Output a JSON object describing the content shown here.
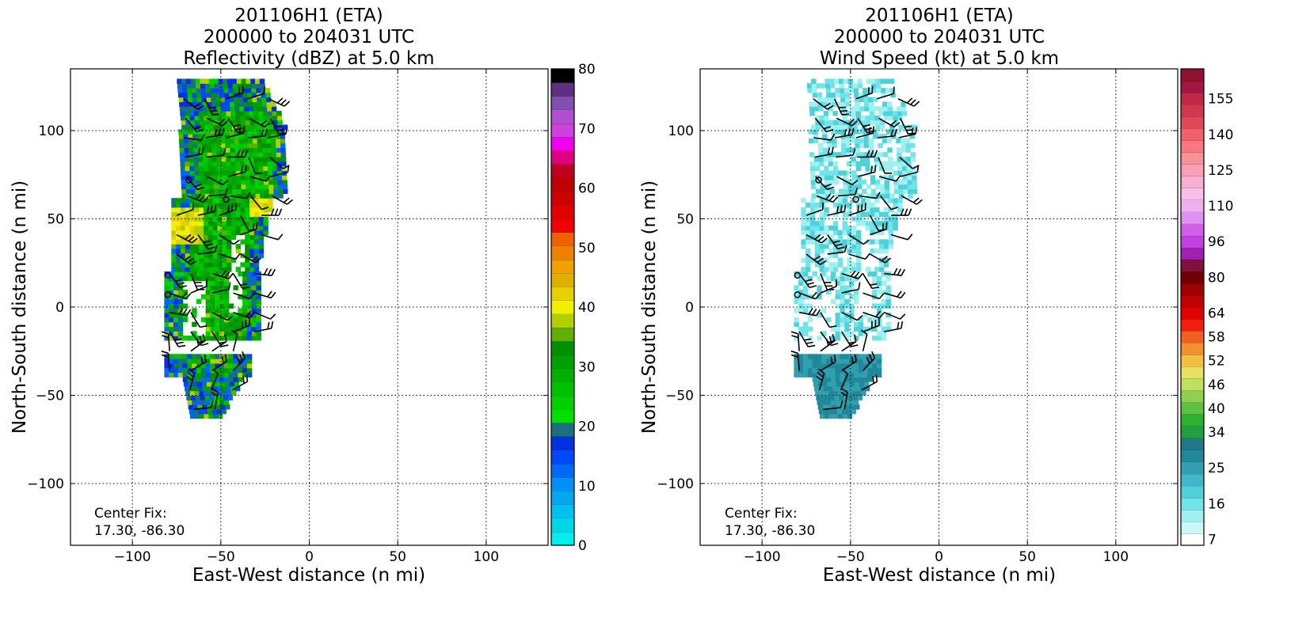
{
  "panels": [
    {
      "title_lines": [
        "201106H1 (ETA)",
        "200000 to 204031 UTC",
        "Reflectivity (dBZ) at 5.0 km"
      ],
      "xlabel": "East-West distance (n mi)",
      "ylabel": "North-South distance (n mi)",
      "center_fix": [
        "Center Fix:",
        "17.30, -86.30"
      ],
      "colorbar": {
        "colors": [
          "#00eeee",
          "#00d8e8",
          "#00c0f0",
          "#00a8f0",
          "#0090f8",
          "#0068f8",
          "#0048f8",
          "#0030e0",
          "#1a7080",
          "#00e000",
          "#00d000",
          "#00c000",
          "#00b000",
          "#00a000",
          "#009000",
          "#60b000",
          "#b0d000",
          "#f0f000",
          "#e8d000",
          "#e0b000",
          "#f0a000",
          "#f08000",
          "#f06000",
          "#f00000",
          "#e00000",
          "#d00000",
          "#c00000",
          "#c00020",
          "#e00080",
          "#f000f0",
          "#d040e0",
          "#b050d0",
          "#8050b0",
          "#603080",
          "#000000"
        ],
        "tick_values": [
          0,
          10,
          20,
          30,
          40,
          50,
          60,
          70,
          80
        ],
        "tick_labels": [
          "0",
          "10",
          "20",
          "30",
          "40",
          "50",
          "60",
          "70",
          "80"
        ],
        "vmin": 0,
        "vmax": 80
      }
    },
    {
      "title_lines": [
        "201106H1 (ETA)",
        "200000 to 204031 UTC",
        "Wind Speed (kt) at 5.0 km"
      ],
      "xlabel": "East-West distance (n mi)",
      "ylabel": "North-South distance (n mi)",
      "center_fix": [
        "Center Fix:",
        "17.30, -86.30"
      ],
      "colorbar": {
        "colors": [
          "#ffffff",
          "#c8f8f8",
          "#a0f0f0",
          "#70e4e8",
          "#50d0d8",
          "#40b8c8",
          "#30a0b0",
          "#208898",
          "#207888",
          "#20a040",
          "#30b030",
          "#60c040",
          "#90d050",
          "#c0e060",
          "#e8e060",
          "#f0c040",
          "#f09030",
          "#f06020",
          "#f02010",
          "#e00000",
          "#c00000",
          "#a00000",
          "#700000",
          "#801040",
          "#a020b0",
          "#c040e0",
          "#d060e8",
          "#e090f0",
          "#f0b0f0",
          "#f8c0e8",
          "#f8b0d0",
          "#f8a0b8",
          "#f89098",
          "#f87880",
          "#f06068",
          "#e04858",
          "#d03850",
          "#c02848",
          "#a01840",
          "#901030"
        ],
        "tick_labels": [
          "7",
          "16",
          "25",
          "34",
          "40",
          "46",
          "52",
          "58",
          "64",
          "80",
          "96",
          "110",
          "125",
          "140",
          "155"
        ],
        "tick_bins": [
          0,
          3,
          6,
          9,
          11,
          13,
          15,
          17,
          19,
          22,
          25,
          28,
          31,
          34,
          37
        ]
      }
    }
  ],
  "chart_data": [
    {
      "type": "heatmap",
      "title": "201106H1 (ETA) 200000 to 204031 UTC Reflectivity (dBZ) at 5.0 km",
      "xlabel": "East-West distance (n mi)",
      "ylabel": "North-South distance (n mi)",
      "xlim": [
        -135,
        135
      ],
      "ylim": [
        -135,
        135
      ],
      "xticks": [
        -100,
        -50,
        0,
        50,
        100
      ],
      "yticks": [
        -100,
        -50,
        0,
        50,
        100
      ],
      "xtick_labels": [
        "−100",
        "−50",
        "0",
        "50",
        "100"
      ],
      "ytick_labels": [
        "−100",
        "−50",
        "0",
        "50",
        "100"
      ],
      "grid": true,
      "colorbar_label": "dBZ",
      "colorbar_range": [
        0,
        80
      ],
      "echo_region": {
        "x_range": [
          -82,
          -15
        ],
        "y_range": [
          -63,
          128
        ],
        "typical_value_dBZ": 25,
        "max_value_dBZ": 40,
        "value_range_dBZ": [
          10,
          40
        ]
      },
      "annotation": "Center Fix: 17.30, -86.30"
    },
    {
      "type": "heatmap",
      "title": "201106H1 (ETA) 200000 to 204031 UTC Wind Speed (kt) at 5.0 km",
      "xlabel": "East-West distance (n mi)",
      "ylabel": "North-South distance (n mi)",
      "xlim": [
        -135,
        135
      ],
      "ylim": [
        -135,
        135
      ],
      "xticks": [
        -100,
        -50,
        0,
        50,
        100
      ],
      "yticks": [
        -100,
        -50,
        0,
        50,
        100
      ],
      "xtick_labels": [
        "−100",
        "−50",
        "0",
        "50",
        "100"
      ],
      "ytick_labels": [
        "−100",
        "−50",
        "0",
        "50",
        "100"
      ],
      "grid": true,
      "colorbar_label": "kt",
      "colorbar_tick_labels": [
        7,
        16,
        25,
        34,
        40,
        46,
        52,
        58,
        64,
        80,
        96,
        110,
        125,
        140,
        155
      ],
      "wind_region": {
        "x_range": [
          -80,
          -15
        ],
        "y_range": [
          -63,
          125
        ],
        "typical_value_kt": 15,
        "max_value_kt": 25,
        "value_range_kt": [
          7,
          25
        ]
      },
      "annotation": "Center Fix: 17.30, -86.30"
    }
  ]
}
